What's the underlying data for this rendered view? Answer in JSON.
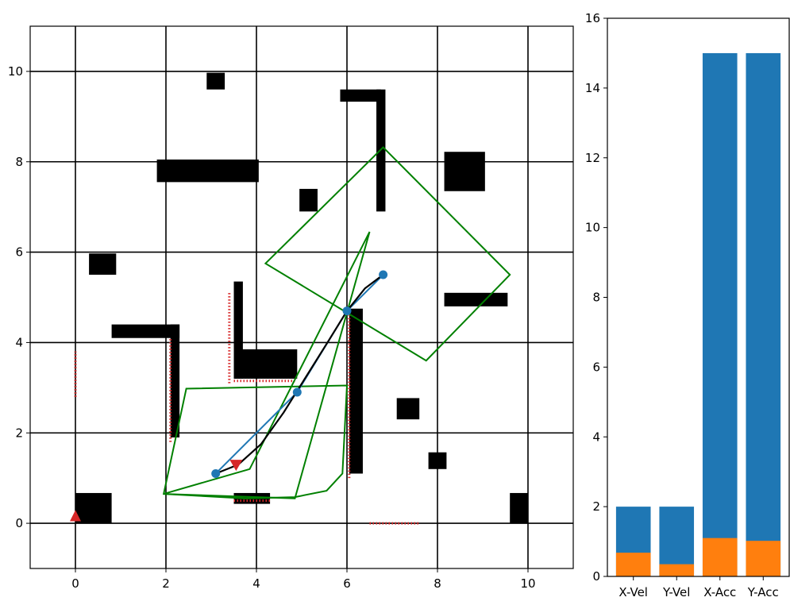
{
  "chart_data": [
    {
      "type": "map",
      "xlim": [
        -1,
        11
      ],
      "ylim": [
        -1,
        11
      ],
      "xticks": [
        0,
        2,
        4,
        6,
        8,
        10
      ],
      "yticks": [
        0,
        2,
        4,
        6,
        8,
        10
      ],
      "grid": true,
      "colors": {
        "obstacle": "#000000",
        "polygon": "#008000",
        "path": "#1f77b4",
        "trajectory": "#000000",
        "marker": "#d62728",
        "lidar": "#d62728"
      },
      "obstacles": [
        {
          "x0": 0.0,
          "x1": 0.8,
          "y0": 0.0,
          "y1": 0.67
        },
        {
          "x0": 0.3,
          "x1": 0.9,
          "y0": 5.5,
          "y1": 5.97
        },
        {
          "x0": 0.8,
          "x1": 2.3,
          "y0": 4.1,
          "y1": 4.4
        },
        {
          "x0": 2.1,
          "x1": 2.3,
          "y0": 1.9,
          "y1": 4.4
        },
        {
          "x0": 1.8,
          "x1": 4.05,
          "y0": 7.55,
          "y1": 8.05
        },
        {
          "x0": 2.9,
          "x1": 3.3,
          "y0": 9.6,
          "y1": 9.97
        },
        {
          "x0": 3.5,
          "x1": 3.7,
          "y0": 3.2,
          "y1": 5.35
        },
        {
          "x0": 3.5,
          "x1": 4.9,
          "y0": 3.2,
          "y1": 3.85
        },
        {
          "x0": 3.5,
          "x1": 4.3,
          "y0": 0.43,
          "y1": 0.67
        },
        {
          "x0": 4.95,
          "x1": 5.35,
          "y0": 6.9,
          "y1": 7.4
        },
        {
          "x0": 5.85,
          "x1": 6.75,
          "y0": 9.33,
          "y1": 9.6
        },
        {
          "x0": 6.65,
          "x1": 6.85,
          "y0": 6.9,
          "y1": 9.6
        },
        {
          "x0": 6.05,
          "x1": 6.35,
          "y0": 1.1,
          "y1": 4.75
        },
        {
          "x0": 7.1,
          "x1": 7.6,
          "y0": 2.3,
          "y1": 2.77
        },
        {
          "x0": 7.8,
          "x1": 8.2,
          "y0": 1.2,
          "y1": 1.57
        },
        {
          "x0": 8.15,
          "x1": 9.55,
          "y0": 4.8,
          "y1": 5.1
        },
        {
          "x0": 8.15,
          "x1": 9.05,
          "y0": 7.35,
          "y1": 8.22
        },
        {
          "x0": 9.6,
          "x1": 10.0,
          "y0": 0.0,
          "y1": 0.67
        }
      ],
      "polygons": [
        [
          [
            6.8,
            8.32
          ],
          [
            9.6,
            5.5
          ],
          [
            7.75,
            3.6
          ],
          [
            4.2,
            5.75
          ]
        ],
        [
          [
            6.5,
            6.45
          ],
          [
            3.85,
            1.2
          ],
          [
            1.95,
            0.65
          ],
          [
            4.85,
            0.55
          ]
        ],
        [
          [
            2.45,
            2.98
          ],
          [
            6.0,
            3.05
          ],
          [
            5.9,
            1.1
          ],
          [
            5.55,
            0.72
          ],
          [
            4.85,
            0.58
          ],
          [
            3.75,
            0.55
          ],
          [
            1.95,
            0.65
          ]
        ]
      ],
      "path": [
        [
          3.1,
          1.1
        ],
        [
          4.9,
          2.9
        ],
        [
          6.0,
          4.7
        ],
        [
          6.8,
          5.5
        ]
      ],
      "trajectory": [
        [
          3.1,
          1.1
        ],
        [
          3.6,
          1.3
        ],
        [
          4.1,
          1.75
        ],
        [
          4.6,
          2.45
        ],
        [
          5.1,
          3.25
        ],
        [
          5.6,
          4.05
        ],
        [
          6.0,
          4.7
        ],
        [
          6.4,
          5.2
        ],
        [
          6.8,
          5.5
        ]
      ],
      "start_marker": [
        0.0,
        0.15
      ],
      "robot_marker": [
        3.55,
        1.3
      ],
      "lidar_hits": [
        {
          "x": 0.0,
          "y0": 2.8,
          "y1": 3.8,
          "orientation": "vertical"
        },
        {
          "x": 2.1,
          "y0": 1.8,
          "y1": 4.1,
          "orientation": "vertical"
        },
        {
          "x": 3.4,
          "y0": 3.1,
          "y1": 5.1,
          "orientation": "vertical"
        },
        {
          "x": 6.05,
          "y0": 1.0,
          "y1": 4.6,
          "orientation": "vertical"
        },
        {
          "y": 3.15,
          "x0": 3.5,
          "x1": 4.85,
          "orientation": "horizontal"
        },
        {
          "y": 0.5,
          "x0": 3.5,
          "x1": 4.3,
          "orientation": "horizontal"
        },
        {
          "y": 0.0,
          "x0": 6.5,
          "x1": 7.6,
          "orientation": "horizontal"
        }
      ]
    },
    {
      "type": "bar",
      "categories": [
        "X-Vel",
        "Y-Vel",
        "X-Acc",
        "Y-Acc"
      ],
      "ylim": [
        0,
        16
      ],
      "yticks": [
        0,
        2,
        4,
        6,
        8,
        10,
        12,
        14,
        16
      ],
      "series": [
        {
          "values": [
            2,
            2,
            15,
            15
          ],
          "color": "#1f77b4"
        },
        {
          "values": [
            0.68,
            0.35,
            1.1,
            1.02
          ],
          "color": "#ff7f0e"
        }
      ]
    }
  ]
}
